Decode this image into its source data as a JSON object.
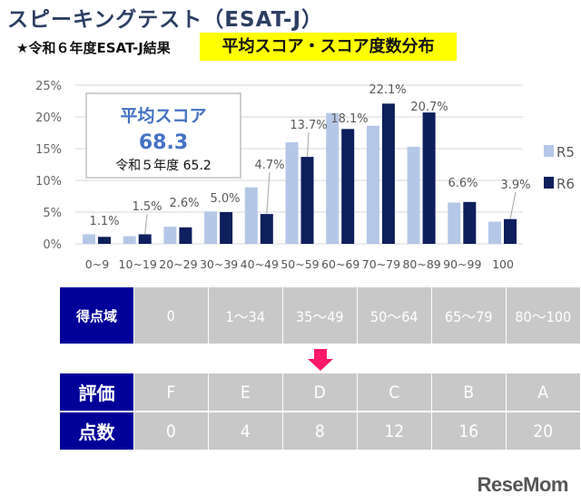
{
  "header": {
    "title": "スピーキングテスト（ESAT-J）",
    "subtitle": "★令和６年度ESAT-J結果",
    "highlight": "平均スコア・スコア度数分布"
  },
  "colors": {
    "r5": "#b4c7e7",
    "r6": "#0d1f5c",
    "average_text": "#4472c4",
    "table_header": "#000099",
    "table_cell": "#c8c8c8",
    "arrow": "#ff1a66",
    "highlight": "#ffff00"
  },
  "average_box": {
    "label": "平均スコア",
    "value": "68.3",
    "previous": "令和５年度 65.2"
  },
  "chart_data": {
    "type": "bar",
    "categories": [
      "0~9",
      "10~19",
      "20~29",
      "30~39",
      "40~49",
      "50~59",
      "60~69",
      "70~79",
      "80~89",
      "90~99",
      "100"
    ],
    "series": [
      {
        "name": "R5",
        "values": [
          1.5,
          1.2,
          2.7,
          5.1,
          8.9,
          16.0,
          20.6,
          18.6,
          15.3,
          6.5,
          3.5
        ]
      },
      {
        "name": "R6",
        "values": [
          1.1,
          1.5,
          2.6,
          5.0,
          4.7,
          13.7,
          18.1,
          22.1,
          20.7,
          6.6,
          3.9
        ]
      }
    ],
    "data_labels": [
      "1.1%",
      "1.5%",
      "2.6%",
      "5.0%",
      "4.7%",
      "13.7%",
      "18.1%",
      "22.1%",
      "20.7%",
      "6.6%",
      "3.9%"
    ],
    "yticks": [
      "0%",
      "5%",
      "10%",
      "15%",
      "20%",
      "25%"
    ],
    "ylim": [
      0,
      25
    ],
    "grid": true,
    "legend": "right"
  },
  "table": {
    "range_header": "得点域",
    "ranges": [
      "0",
      "1～34",
      "35～49",
      "50～64",
      "65～79",
      "80～100"
    ],
    "grade_header": "評価",
    "grades": [
      "F",
      "E",
      "D",
      "C",
      "B",
      "A"
    ],
    "points_header": "点数",
    "points": [
      "0",
      "4",
      "8",
      "12",
      "16",
      "20"
    ]
  },
  "watermark": "ReseMom"
}
